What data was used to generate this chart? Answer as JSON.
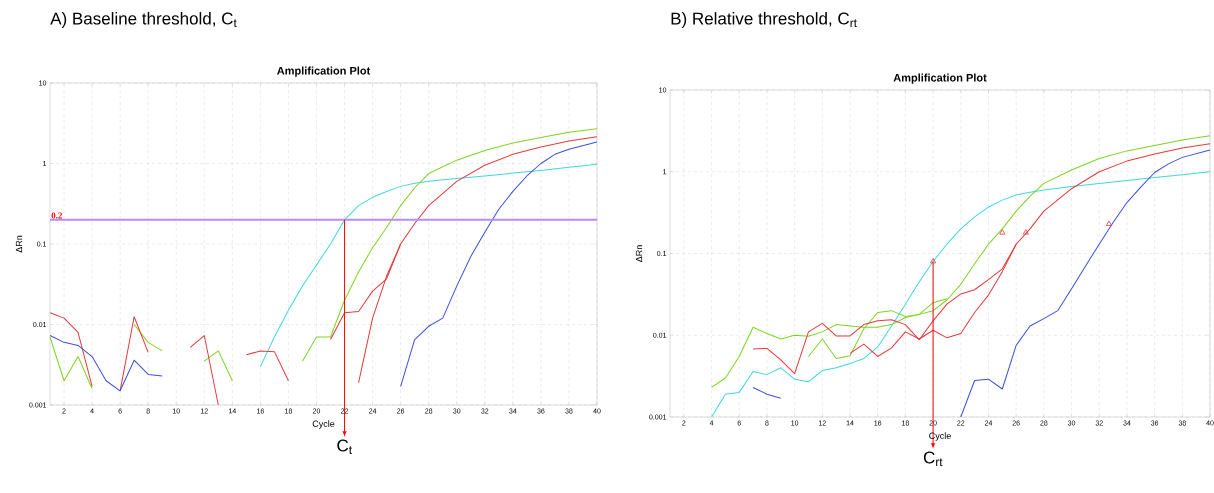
{
  "chart_data": [
    {
      "type": "line",
      "title": "A) Baseline threshold, C$_{t}$",
      "subtitle": "Amplification Plot",
      "xlabel": "Cycle",
      "ylabel": "ΔRn",
      "log": "y",
      "grid": true,
      "xlim": [
        1,
        40
      ],
      "ylim": [
        0.001,
        10
      ],
      "xticks": [
        2,
        4,
        6,
        8,
        10,
        12,
        14,
        16,
        18,
        20,
        22,
        24,
        26,
        28,
        30,
        32,
        34,
        36,
        38,
        40
      ],
      "yticks": [
        0.001,
        0.01,
        0.1,
        1,
        10
      ],
      "ref_lines": [
        {
          "axis": "y",
          "value": 0.2,
          "label": "0.2",
          "color": "#b98cf5"
        }
      ],
      "annotations": [
        {
          "text": "C$_{t}$",
          "x": 22,
          "y": 0.2
        }
      ],
      "series": [
        {
          "color": "#3fd6e0",
          "x": [
            16,
            17,
            18,
            19,
            20,
            21,
            22,
            23,
            24,
            25,
            26,
            27,
            28,
            30,
            32,
            34,
            36,
            38,
            40
          ],
          "values": [
            0.003,
            0.007,
            0.015,
            0.03,
            0.055,
            0.1,
            0.2,
            0.3,
            0.38,
            0.45,
            0.52,
            0.57,
            0.6,
            0.65,
            0.7,
            0.76,
            0.82,
            0.9,
            0.98
          ]
        },
        {
          "color": "#7ed321",
          "x": [
            19,
            20,
            21,
            22,
            23,
            24,
            25,
            26,
            27,
            28,
            30,
            32,
            34,
            36,
            38,
            40
          ],
          "values": [
            0.0035,
            0.007,
            0.007,
            0.02,
            0.045,
            0.09,
            0.16,
            0.3,
            0.5,
            0.75,
            1.1,
            1.45,
            1.8,
            2.1,
            2.45,
            2.7
          ]
        },
        {
          "color": "#7ed321",
          "x": [
            1,
            2,
            3,
            4,
            5,
            6,
            7,
            8,
            9,
            10,
            11,
            12,
            13,
            14
          ],
          "values": [
            0.007,
            0.002,
            0.004,
            0.0016,
            null,
            null,
            0.01,
            0.006,
            0.0047,
            null,
            null,
            0.0035,
            0.0047,
            0.002
          ]
        },
        {
          "color": "#e8383a",
          "x": [
            23,
            24,
            25,
            26,
            27,
            28,
            30,
            32,
            34,
            36,
            38,
            40
          ],
          "values": [
            0.0019,
            0.012,
            0.04,
            0.1,
            0.18,
            0.3,
            0.6,
            0.95,
            1.3,
            1.6,
            1.9,
            2.15
          ]
        },
        {
          "color": "#e8383a",
          "x": [
            21,
            22,
            23,
            24,
            25,
            26
          ],
          "values": [
            0.0065,
            0.014,
            0.0145,
            0.026,
            0.037,
            0.1
          ]
        },
        {
          "color": "#e8383a",
          "x": [
            1,
            2,
            3,
            4,
            5,
            6,
            7,
            8,
            9,
            10,
            11,
            12,
            13,
            14,
            15,
            16,
            17,
            18
          ],
          "values": [
            0.014,
            0.012,
            0.008,
            0.0017,
            null,
            0.0015,
            0.0125,
            0.0045,
            null,
            null,
            0.0052,
            0.0073,
            0.001,
            null,
            0.0042,
            0.0047,
            0.0046,
            0.002
          ]
        },
        {
          "color": "#3a4fe0",
          "x": [
            26,
            27,
            28,
            29,
            30,
            31,
            32,
            33,
            34,
            35,
            36,
            37,
            38,
            40
          ],
          "values": [
            0.0017,
            0.0065,
            0.0095,
            0.012,
            0.03,
            0.07,
            0.14,
            0.27,
            0.45,
            0.7,
            1.0,
            1.3,
            1.5,
            1.85
          ]
        },
        {
          "color": "#3a4fe0",
          "x": [
            1,
            2,
            3,
            4,
            5,
            6,
            7,
            8,
            9
          ],
          "values": [
            0.0073,
            0.006,
            0.0055,
            0.004,
            0.002,
            0.0015,
            0.0036,
            0.0024,
            0.0023
          ]
        }
      ]
    },
    {
      "type": "line",
      "title": "B) Relative threshold, C$_{rt}$",
      "subtitle": "Amplification Plot",
      "xlabel": "Cycle",
      "ylabel": "ΔRn",
      "log": "y",
      "grid": true,
      "xlim": [
        1,
        40
      ],
      "ylim": [
        0.001,
        10
      ],
      "xticks": [
        2,
        4,
        6,
        8,
        10,
        12,
        14,
        16,
        18,
        20,
        22,
        24,
        26,
        28,
        30,
        32,
        34,
        36,
        38,
        40
      ],
      "yticks": [
        0.001,
        0.01,
        0.1,
        1,
        10
      ],
      "annotations": [
        {
          "text": "C$_{rt}$",
          "x": 20,
          "y": 0.08
        }
      ],
      "series": [
        {
          "color": "#3fd6e0",
          "x": [
            4,
            5,
            6,
            7,
            8,
            9,
            10,
            11,
            12,
            13,
            14,
            15,
            16,
            17,
            18,
            19,
            20,
            21,
            22,
            23,
            24,
            25,
            26,
            27,
            28,
            30,
            32,
            34,
            36,
            38,
            40
          ],
          "values": [
            0.001,
            0.0019,
            0.002,
            0.0036,
            0.0033,
            0.004,
            0.0029,
            0.0027,
            0.0037,
            0.004,
            0.0045,
            0.0052,
            0.0072,
            0.013,
            0.024,
            0.045,
            0.08,
            0.13,
            0.2,
            0.28,
            0.37,
            0.45,
            0.52,
            0.56,
            0.6,
            0.66,
            0.72,
            0.78,
            0.85,
            0.92,
            1.0
          ]
        },
        {
          "color": "#7ed321",
          "x": [
            4,
            5,
            6,
            7,
            8,
            9,
            10,
            11,
            12,
            13,
            14,
            15,
            16,
            17,
            18,
            19,
            20,
            21,
            22,
            23,
            24,
            25,
            26,
            27,
            28,
            30,
            32,
            34,
            36,
            38,
            40
          ],
          "values": [
            0.0023,
            0.003,
            0.0055,
            0.0125,
            0.0105,
            0.009,
            0.01,
            0.0097,
            0.011,
            0.0135,
            0.013,
            0.0125,
            0.0125,
            0.0135,
            0.0165,
            0.018,
            0.02,
            0.027,
            0.042,
            0.075,
            0.13,
            0.2,
            0.33,
            0.5,
            0.72,
            1.05,
            1.45,
            1.8,
            2.1,
            2.45,
            2.75
          ]
        },
        {
          "color": "#7ed321",
          "x": [
            11,
            12,
            13,
            14,
            15,
            16,
            17,
            18,
            19,
            20,
            21
          ],
          "values": [
            0.0055,
            0.009,
            0.0052,
            0.0056,
            0.012,
            0.019,
            0.02,
            0.017,
            0.018,
            0.025,
            0.028
          ]
        },
        {
          "color": "#e8383a",
          "x": [
            7,
            8,
            9,
            10,
            11,
            12,
            13,
            14,
            15,
            16,
            17,
            18,
            19,
            20,
            21,
            22,
            23,
            24,
            25,
            26,
            27,
            28,
            30,
            32,
            34,
            36,
            38,
            40
          ],
          "values": [
            0.0068,
            0.0069,
            0.005,
            0.0034,
            0.011,
            0.014,
            0.0098,
            0.0098,
            0.0135,
            0.015,
            0.0155,
            0.0135,
            0.0088,
            0.015,
            0.024,
            0.032,
            0.036,
            0.048,
            0.065,
            0.13,
            0.2,
            0.33,
            0.62,
            1.0,
            1.35,
            1.65,
            1.95,
            2.2
          ]
        },
        {
          "color": "#e8383a",
          "x": [
            14,
            15,
            16,
            17,
            18,
            19,
            20,
            21,
            22,
            23,
            24,
            25,
            26
          ],
          "values": [
            0.006,
            0.0078,
            0.0055,
            0.007,
            0.011,
            0.009,
            0.0115,
            0.0093,
            0.0105,
            0.019,
            0.031,
            0.06,
            0.13
          ]
        },
        {
          "color": "#3a4fe0",
          "x": [
            22,
            23,
            24,
            25,
            26,
            27,
            28,
            29,
            30,
            31,
            32,
            33,
            34,
            35,
            36,
            37,
            38,
            40
          ],
          "values": [
            0.001,
            0.0028,
            0.0029,
            0.0022,
            0.0075,
            0.013,
            0.016,
            0.02,
            0.037,
            0.07,
            0.13,
            0.24,
            0.42,
            0.65,
            0.98,
            1.25,
            1.5,
            1.85
          ]
        },
        {
          "color": "#3a4fe0",
          "x": [
            7,
            8,
            9
          ],
          "values": [
            0.0023,
            0.0019,
            0.0017
          ]
        },
        {
          "type": "scatter",
          "marker": "triangle",
          "color": "#e8383a",
          "x": [
            20,
            25,
            26.7,
            32.7
          ],
          "values": [
            0.08,
            0.18,
            0.18,
            0.23
          ]
        }
      ]
    }
  ]
}
